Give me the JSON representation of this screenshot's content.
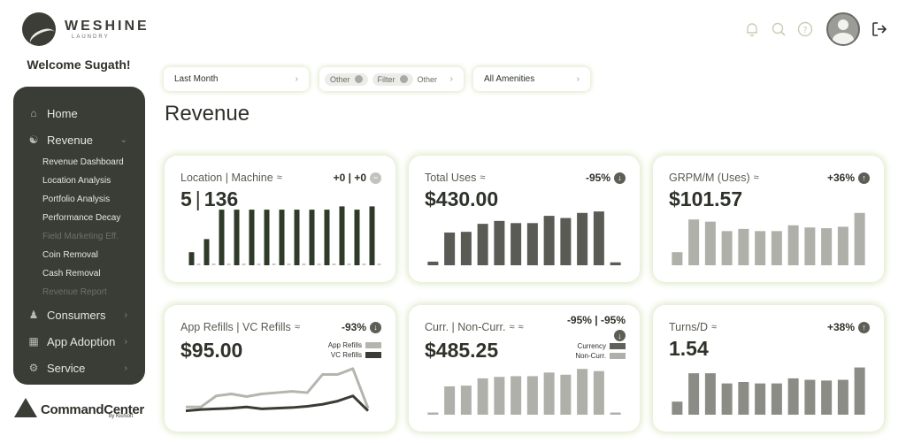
{
  "brand": {
    "name": "WESHINE",
    "sub": "LAUNDRY"
  },
  "welcome": "Welcome Sugath!",
  "sidebar": {
    "items": [
      {
        "label": "Home",
        "icon": "home-icon"
      },
      {
        "label": "Revenue",
        "icon": "revenue-icon"
      },
      {
        "label": "Consumers",
        "icon": "consumers-icon"
      },
      {
        "label": "App Adoption",
        "icon": "app-adoption-icon"
      },
      {
        "label": "Service",
        "icon": "service-icon"
      }
    ],
    "revenue_sub": [
      {
        "label": "Revenue Dashboard",
        "dim": false
      },
      {
        "label": "Location Analysis",
        "dim": false
      },
      {
        "label": "Portfolio Analysis",
        "dim": false
      },
      {
        "label": "Performance Decay",
        "dim": false
      },
      {
        "label": "Field Marketing Eff.",
        "dim": true
      },
      {
        "label": "Coin Removal",
        "dim": false
      },
      {
        "label": "Cash Removal",
        "dim": false
      },
      {
        "label": "Revenue Report",
        "dim": true
      }
    ]
  },
  "footer_logo": {
    "name": "CommandCenter",
    "by": "by KioSoft"
  },
  "filters": {
    "period": "Last Month",
    "chip1": "Other",
    "chip2": "Filter",
    "chip3": "Other",
    "amenities": "All Amenities"
  },
  "page_title": "Revenue",
  "cards": [
    {
      "title": "Location | Machine",
      "value_a": "5",
      "value_b": "136",
      "badge": "+0 | +0",
      "badge_icon": "minus-icon",
      "chart": {
        "type": "bar",
        "values": [
          2,
          4,
          8.5,
          8.5,
          8.5,
          8.5,
          8.5,
          8.5,
          8.5,
          8.5,
          9,
          8.5,
          9
        ],
        "ghost": [
          0.3,
          0.3,
          0.3,
          0.3,
          0.3,
          0.3,
          0.3,
          0.3,
          0.3,
          0.3,
          0.3,
          0.3,
          0.3
        ],
        "color": "#2f3a28",
        "max": 10
      }
    },
    {
      "title": "Total Uses",
      "value": "$430.00",
      "badge": "-95%",
      "badge_icon": "arrow-down-icon",
      "chart": {
        "type": "bar",
        "values": [
          0.5,
          4.5,
          4.6,
          5.7,
          6.1,
          5.8,
          5.8,
          6.8,
          6.5,
          7.2,
          7.4,
          0.4
        ],
        "color": "#595b54",
        "max": 9
      }
    },
    {
      "title": "GRPM/M (Uses)",
      "value": "$101.57",
      "badge": "+36%",
      "badge_icon": "arrow-up-icon",
      "chart": {
        "type": "bar",
        "values": [
          1.8,
          6.3,
          6.0,
          4.7,
          5.0,
          4.7,
          4.7,
          5.5,
          5.2,
          5.1,
          5.3,
          7.2
        ],
        "color": "#aeb0a9",
        "max": 9
      }
    },
    {
      "title": "App Refills | VC Refills",
      "value": "$95.00",
      "badge": "-93%",
      "badge_icon": "arrow-down-icon",
      "legend": [
        {
          "label": "App Refills",
          "color": "#b3b6ad"
        },
        {
          "label": "VC Refills",
          "color": "#3a3c36"
        }
      ],
      "chart": {
        "type": "line",
        "series": [
          {
            "name": "App Refills",
            "values": [
              1.2,
              1.2,
              2.9,
              3.2,
              2.8,
              3.2,
              3.4,
              3.6,
              3.4,
              6.2,
              6.2,
              7.1,
              1.0
            ],
            "color": "#b3b6ad"
          },
          {
            "name": "VC Refills",
            "values": [
              0.6,
              0.8,
              0.9,
              1.0,
              1.2,
              0.9,
              1.0,
              1.1,
              1.3,
              1.6,
              2.1,
              2.9,
              0.6
            ],
            "color": "#3a3c36"
          }
        ],
        "max": 9
      }
    },
    {
      "title": "Curr. | Non-Curr.",
      "value": "$485.25",
      "badge": "-95% | -95%",
      "badge_icon": "arrow-down-icon",
      "legend": [
        {
          "label": "Currency",
          "color": "#5f615a"
        },
        {
          "label": "Non-Curr.",
          "color": "#aeb0a9"
        }
      ],
      "chart": {
        "type": "bar",
        "values": [
          0.3,
          3.9,
          4.0,
          5.0,
          5.2,
          5.3,
          5.3,
          5.8,
          5.5,
          6.3,
          6.0,
          0.3
        ],
        "color": "#aeb0a9",
        "max": 9
      }
    },
    {
      "title": "Turns/D",
      "value": "1.54",
      "badge": "+38%",
      "badge_icon": "arrow-up-icon",
      "chart": {
        "type": "bar",
        "values": [
          1.8,
          5.7,
          5.7,
          4.3,
          4.5,
          4.3,
          4.3,
          5.0,
          4.8,
          4.7,
          4.8,
          6.5
        ],
        "color": "#8a8c85",
        "max": 9
      }
    }
  ]
}
